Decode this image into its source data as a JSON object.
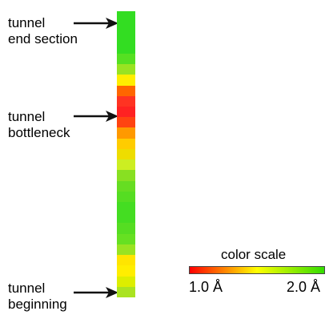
{
  "labels": {
    "end": "tunnel\nend section",
    "bottleneck": "tunnel\nbottleneck",
    "beginning": "tunnel\nbeginning"
  },
  "color_scale": {
    "title": "color scale",
    "min_label": "1.0 Å",
    "max_label": "2.0 Å",
    "gradient": [
      "#ff0000",
      "#ffff00",
      "#33dd00"
    ]
  },
  "tunnel_segments": [
    "#33dd22",
    "#33dd22",
    "#33dd22",
    "#33dd22",
    "#55e022",
    "#99e322",
    "#ffee00",
    "#ff6600",
    "#ff3322",
    "#ff2222",
    "#ff4411",
    "#ff9900",
    "#ffcc00",
    "#eedd00",
    "#ccee22",
    "#88e022",
    "#66dd22",
    "#55dd22",
    "#44dd22",
    "#44dd22",
    "#55dd22",
    "#66e022",
    "#99e322",
    "#ffe500",
    "#ffee00",
    "#ddee00",
    "#aae322"
  ],
  "colors": {
    "arrow": "#111111",
    "text": "#000000"
  }
}
